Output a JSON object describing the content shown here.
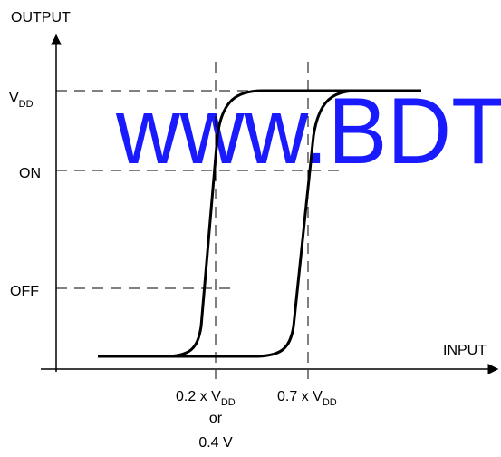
{
  "diagram": {
    "y_axis_label": "OUTPUT",
    "x_axis_label": "INPUT",
    "y_levels": {
      "vdd": {
        "main": "V",
        "sub": "DD"
      },
      "on": "ON",
      "off": "OFF"
    },
    "x_marks": {
      "low": {
        "prefix": "0.2 x V",
        "sub": "DD",
        "line2": "or",
        "line3": "0.4 V"
      },
      "high": {
        "prefix": "0.7 x V",
        "sub": "DD"
      }
    },
    "watermark": "www.BDT",
    "colors": {
      "axis": "#000000",
      "curve": "#000000",
      "dashed": "#000000",
      "watermark": "#1a1aff"
    }
  }
}
